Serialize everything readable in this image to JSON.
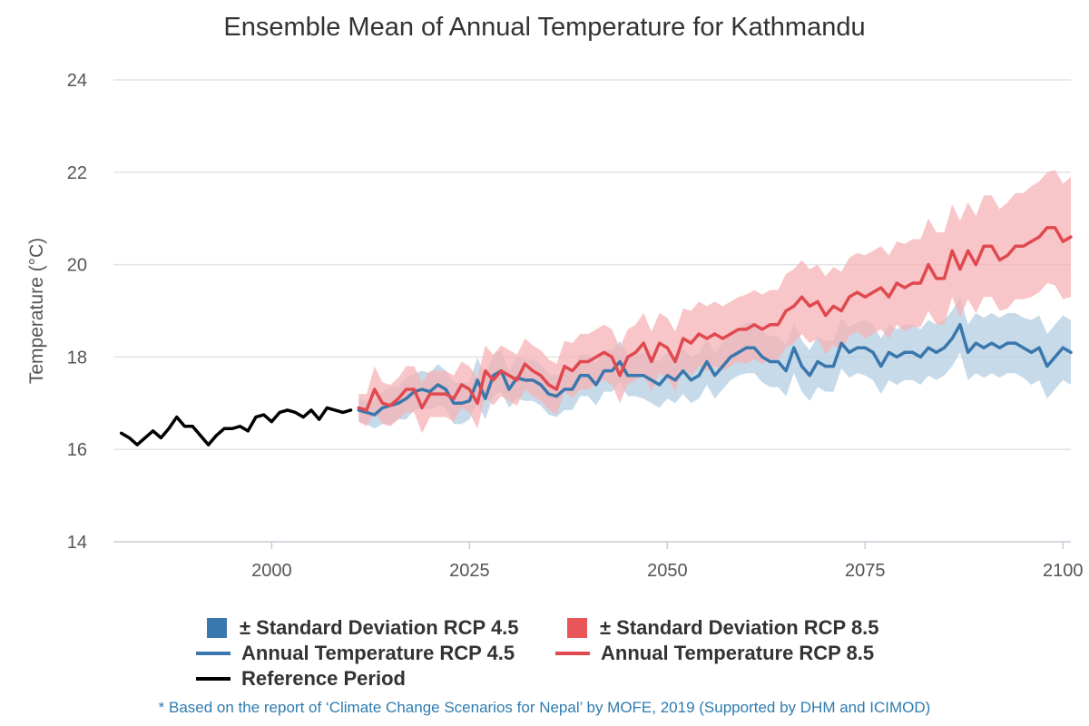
{
  "chart_data": {
    "type": "line",
    "title": "Ensemble Mean of Annual Temperature for Kathmandu",
    "xlabel": "",
    "ylabel": "Temperature (°C)",
    "xlim": [
      1980,
      2101
    ],
    "ylim": [
      14,
      24
    ],
    "xticks": [
      2000,
      2025,
      2050,
      2075,
      2100
    ],
    "yticks": [
      14,
      16,
      18,
      20,
      22,
      24
    ],
    "grid": "horizontal",
    "legend_position": "bottom",
    "colors": {
      "rcp45_line": "#3a77ac",
      "rcp45_band": "#b3cde3",
      "rcp85_line": "#e0494f",
      "rcp85_band": "#f6b3b5",
      "reference": "#000000"
    },
    "reference": {
      "name": "Reference Period",
      "x_start": 1981,
      "values": [
        16.35,
        16.25,
        16.1,
        16.25,
        16.4,
        16.25,
        16.45,
        16.7,
        16.5,
        16.5,
        16.3,
        16.1,
        16.3,
        16.45,
        16.45,
        16.5,
        16.4,
        16.7,
        16.75,
        16.6,
        16.8,
        16.85,
        16.8,
        16.7,
        16.85,
        16.65,
        16.9,
        16.85,
        16.8,
        16.85
      ]
    },
    "rcp45": {
      "line_name": "Annual Temperature RCP 4.5",
      "band_name": "± Standard Deviation RCP 4.5",
      "x_start": 2011,
      "values": [
        16.85,
        16.8,
        16.75,
        16.9,
        16.95,
        17.0,
        17.1,
        17.25,
        17.3,
        17.25,
        17.4,
        17.3,
        17.0,
        17.0,
        17.05,
        17.5,
        17.1,
        17.6,
        17.7,
        17.3,
        17.55,
        17.5,
        17.5,
        17.4,
        17.2,
        17.15,
        17.3,
        17.3,
        17.6,
        17.6,
        17.4,
        17.7,
        17.7,
        17.9,
        17.6,
        17.6,
        17.6,
        17.5,
        17.4,
        17.6,
        17.5,
        17.7,
        17.5,
        17.6,
        17.9,
        17.6,
        17.8,
        18.0,
        18.1,
        18.2,
        18.2,
        18.0,
        17.9,
        17.9,
        17.7,
        18.2,
        17.8,
        17.6,
        17.9,
        17.8,
        17.8,
        18.3,
        18.1,
        18.2,
        18.2,
        18.1,
        17.8,
        18.1,
        18.0,
        18.1,
        18.1,
        18.0,
        18.2,
        18.1,
        18.2,
        18.4,
        18.7,
        18.1,
        18.3,
        18.2,
        18.3,
        18.2,
        18.3,
        18.3,
        18.2,
        18.1,
        18.2,
        17.8,
        18.0,
        18.2,
        18.1
      ],
      "sd": [
        0.25,
        0.25,
        0.3,
        0.35,
        0.4,
        0.35,
        0.45,
        0.4,
        0.4,
        0.4,
        0.45,
        0.4,
        0.45,
        0.45,
        0.4,
        0.5,
        0.45,
        0.45,
        0.45,
        0.4,
        0.45,
        0.45,
        0.45,
        0.45,
        0.45,
        0.45,
        0.45,
        0.45,
        0.45,
        0.45,
        0.45,
        0.45,
        0.45,
        0.45,
        0.45,
        0.45,
        0.5,
        0.5,
        0.5,
        0.5,
        0.5,
        0.5,
        0.5,
        0.5,
        0.5,
        0.5,
        0.5,
        0.5,
        0.5,
        0.55,
        0.55,
        0.55,
        0.55,
        0.55,
        0.55,
        0.55,
        0.55,
        0.55,
        0.55,
        0.55,
        0.55,
        0.55,
        0.55,
        0.55,
        0.6,
        0.6,
        0.6,
        0.6,
        0.6,
        0.6,
        0.6,
        0.6,
        0.6,
        0.6,
        0.6,
        0.6,
        0.6,
        0.6,
        0.65,
        0.65,
        0.65,
        0.65,
        0.65,
        0.65,
        0.65,
        0.7,
        0.7,
        0.7,
        0.7,
        0.7,
        0.7
      ]
    },
    "rcp85": {
      "line_name": "Annual Temperature RCP 8.5",
      "band_name": "± Standard Deviation RCP 8.5",
      "x_start": 2011,
      "values": [
        16.9,
        16.85,
        17.3,
        17.0,
        16.95,
        17.1,
        17.3,
        17.3,
        16.9,
        17.2,
        17.2,
        17.2,
        17.1,
        17.4,
        17.3,
        17.0,
        17.7,
        17.5,
        17.7,
        17.6,
        17.5,
        17.85,
        17.7,
        17.6,
        17.4,
        17.3,
        17.8,
        17.7,
        17.9,
        17.9,
        18.0,
        18.1,
        18.0,
        17.6,
        18.0,
        18.1,
        18.3,
        17.9,
        18.3,
        18.2,
        17.9,
        18.4,
        18.3,
        18.5,
        18.4,
        18.5,
        18.4,
        18.5,
        18.6,
        18.6,
        18.7,
        18.6,
        18.7,
        18.7,
        19.0,
        19.1,
        19.3,
        19.1,
        19.2,
        18.9,
        19.1,
        19.0,
        19.3,
        19.4,
        19.3,
        19.4,
        19.5,
        19.3,
        19.6,
        19.5,
        19.6,
        19.6,
        20.0,
        19.7,
        19.7,
        20.3,
        19.9,
        20.3,
        20.0,
        20.4,
        20.4,
        20.1,
        20.2,
        20.4,
        20.4,
        20.5,
        20.6,
        20.8,
        20.8,
        20.5,
        20.6
      ],
      "sd": [
        0.3,
        0.35,
        0.5,
        0.45,
        0.45,
        0.45,
        0.5,
        0.5,
        0.55,
        0.5,
        0.5,
        0.5,
        0.5,
        0.5,
        0.5,
        0.55,
        0.55,
        0.55,
        0.55,
        0.55,
        0.55,
        0.55,
        0.55,
        0.55,
        0.55,
        0.55,
        0.55,
        0.6,
        0.6,
        0.6,
        0.6,
        0.6,
        0.6,
        0.6,
        0.6,
        0.6,
        0.65,
        0.65,
        0.65,
        0.65,
        0.65,
        0.65,
        0.7,
        0.7,
        0.7,
        0.7,
        0.7,
        0.7,
        0.7,
        0.75,
        0.75,
        0.75,
        0.75,
        0.75,
        0.8,
        0.8,
        0.8,
        0.8,
        0.8,
        0.85,
        0.85,
        0.85,
        0.85,
        0.85,
        0.9,
        0.9,
        0.9,
        0.9,
        0.9,
        0.95,
        0.95,
        0.95,
        1.0,
        1.0,
        1.0,
        1.0,
        1.05,
        1.05,
        1.05,
        1.1,
        1.1,
        1.1,
        1.15,
        1.15,
        1.15,
        1.2,
        1.2,
        1.2,
        1.25,
        1.25,
        1.3
      ]
    }
  },
  "legend": {
    "band45": "± Standard Deviation RCP 4.5",
    "band85": "± Standard Deviation RCP 8.5",
    "line45": "Annual Temperature RCP 4.5",
    "line85": "Annual Temperature RCP 8.5",
    "reference": "Reference Period"
  },
  "footnote": "* Based on the report of ‘Climate Change Scenarios for Nepal’ by MOFE, 2019 (Supported by DHM and ICIMOD)"
}
